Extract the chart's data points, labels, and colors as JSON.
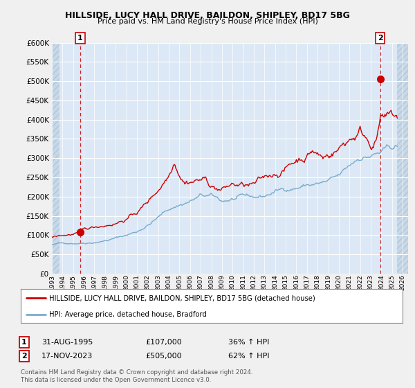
{
  "title": "HILLSIDE, LUCY HALL DRIVE, BAILDON, SHIPLEY, BD17 5BG",
  "subtitle": "Price paid vs. HM Land Registry's House Price Index (HPI)",
  "legend_line1": "HILLSIDE, LUCY HALL DRIVE, BAILDON, SHIPLEY, BD17 5BG (detached house)",
  "legend_line2": "HPI: Average price, detached house, Bradford",
  "sale1_date": "31-AUG-1995",
  "sale1_price": "£107,000",
  "sale1_hpi": "36% ↑ HPI",
  "sale2_date": "17-NOV-2023",
  "sale2_price": "£505,000",
  "sale2_hpi": "62% ↑ HPI",
  "footnote": "Contains HM Land Registry data © Crown copyright and database right 2024.\nThis data is licensed under the Open Government Licence v3.0.",
  "ylim": [
    0,
    600000
  ],
  "yticks": [
    0,
    50000,
    100000,
    150000,
    200000,
    250000,
    300000,
    350000,
    400000,
    450000,
    500000,
    550000,
    600000
  ],
  "red_color": "#cc0000",
  "blue_color": "#7aabcf",
  "background_color": "#f0f0f0",
  "plot_bg_color": "#dce8f5",
  "hatch_color": "#c8d8e8",
  "grid_color": "#ffffff",
  "sale1_x": 1995.667,
  "sale1_y": 107000,
  "sale2_x": 2023.88,
  "sale2_y": 505000,
  "xlim": [
    1993.0,
    2026.5
  ]
}
